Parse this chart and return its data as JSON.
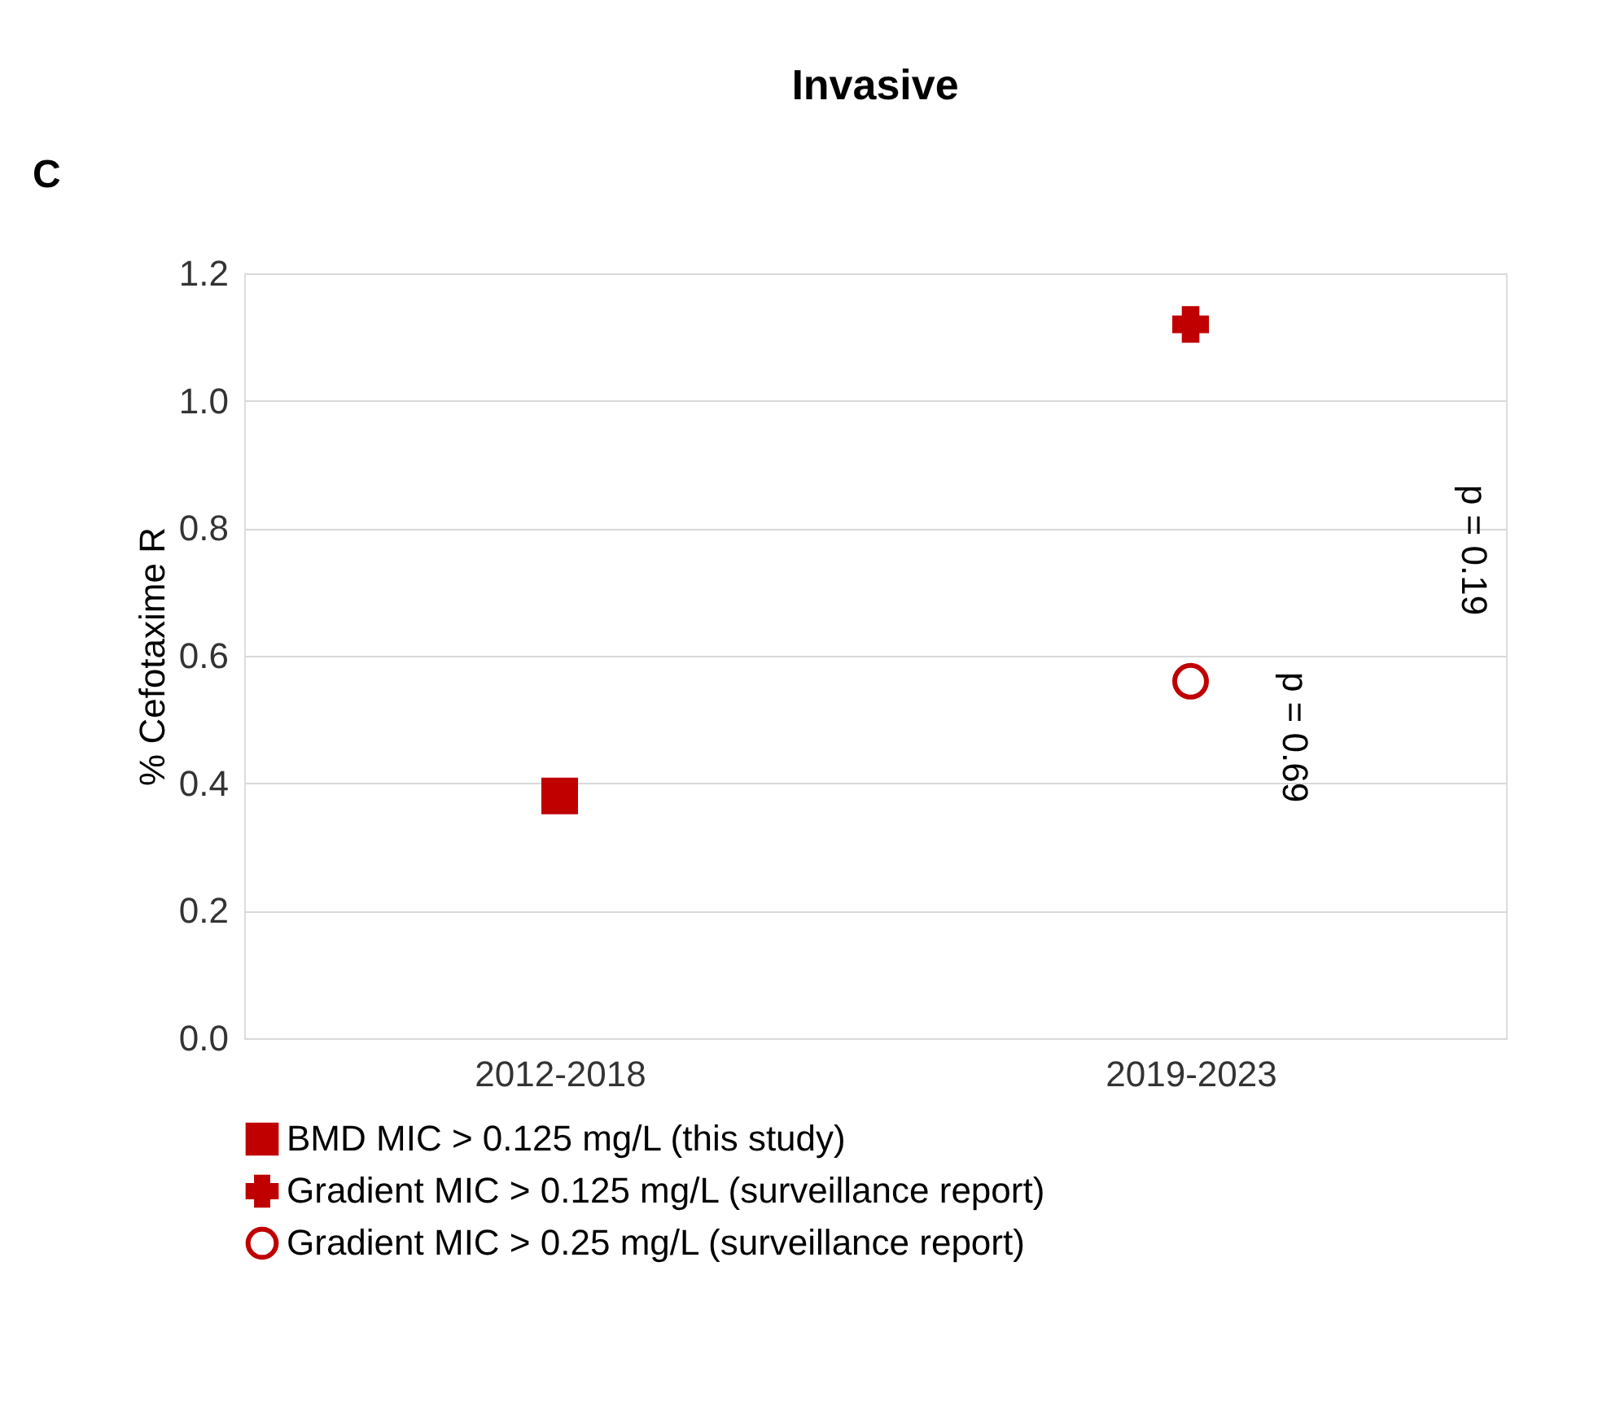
{
  "chart_data": {
    "type": "scatter",
    "title": "Invasive",
    "ylabel": "% Cefotaxime R",
    "categories": [
      "2012-2018",
      "2019-2023"
    ],
    "series": [
      {
        "name": "BMD MIC > 0.125 mg/L (this study)",
        "color": "#c00000",
        "marker": "square",
        "values": [
          0.38,
          null
        ]
      },
      {
        "name": "Gradient MIC > 0.125 mg/L (surveillance report)",
        "color": "#c00000",
        "marker": "cross",
        "values": [
          null,
          1.12
        ]
      },
      {
        "name": "Gradient MIC > 0.25 mg/L (surveillance report)",
        "color": "#c00000",
        "marker": "circle",
        "values": [
          null,
          0.56
        ]
      }
    ],
    "ylim": [
      0,
      1.2
    ],
    "yticks": [
      {
        "value": 0,
        "label": "0.0"
      },
      0.2,
      0.4,
      0.6,
      0.8,
      {
        "value": 1,
        "label": "1.0"
      },
      1.2
    ],
    "grid": "y",
    "legend": "bottom",
    "annotations": [
      "C",
      "p = 0.69",
      "p = 0.19"
    ]
  }
}
